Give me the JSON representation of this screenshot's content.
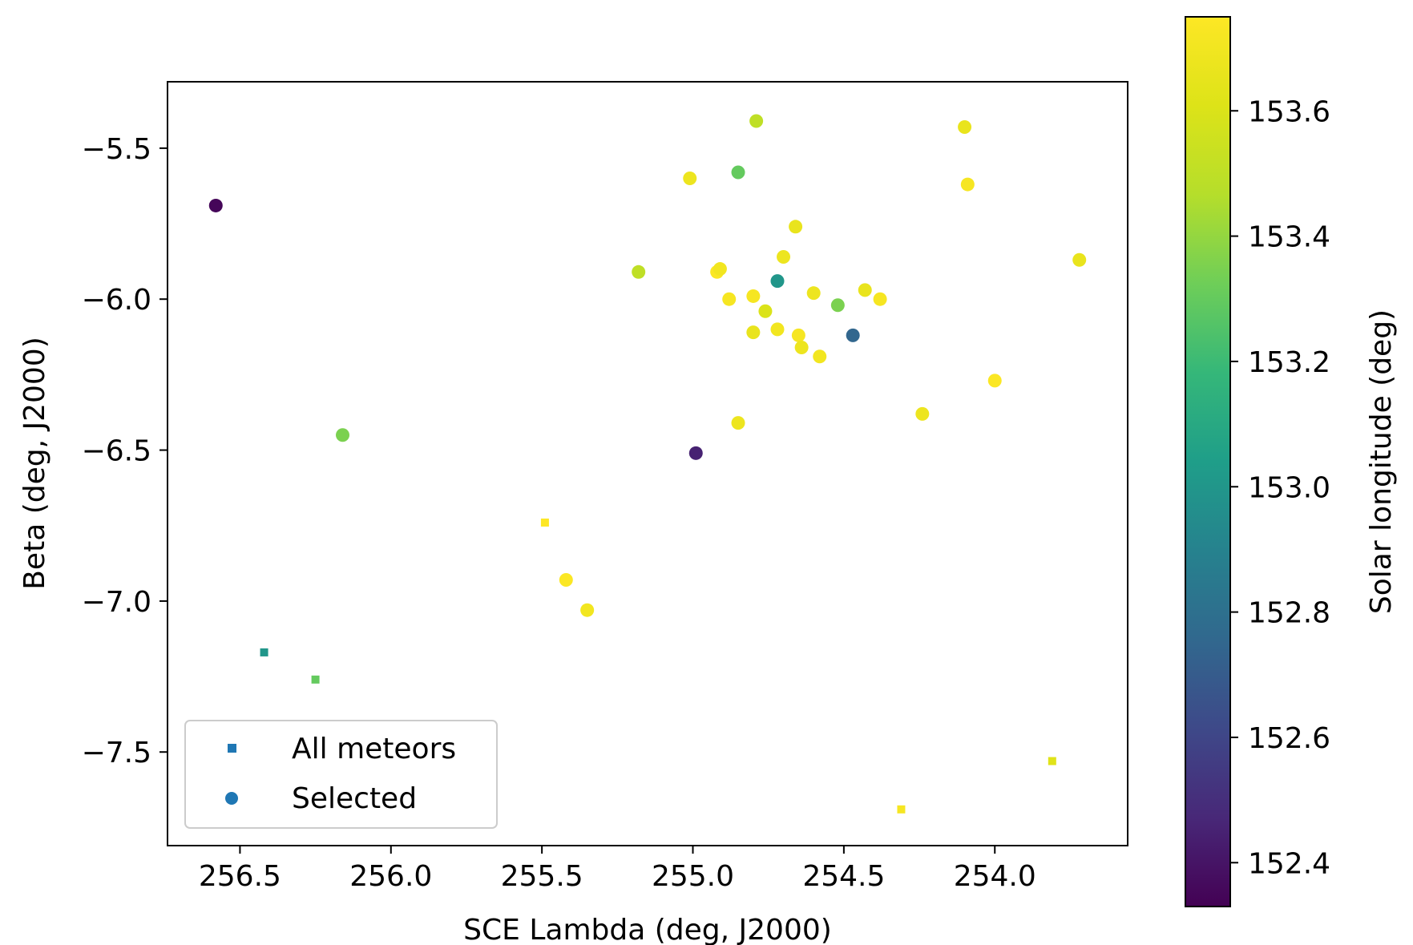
{
  "chart_data": {
    "type": "scatter",
    "title": "",
    "xlabel": "SCE Lambda (deg, J2000)",
    "ylabel": "Beta (deg, J2000)",
    "colorbar_label": "Solar longitude (deg)",
    "xlim": [
      256.74,
      253.56
    ],
    "ylim": [
      -7.81,
      -5.28
    ],
    "x_inverted": true,
    "x_ticks": [
      "256.5",
      "256.0",
      "255.5",
      "255.0",
      "254.5",
      "254.0"
    ],
    "y_ticks": [
      "−5.5",
      "−6.0",
      "−6.5",
      "−7.0",
      "−7.5"
    ],
    "colorbar_range": [
      152.33,
      153.75
    ],
    "colorbar_ticks": [
      "152.4",
      "152.6",
      "152.8",
      "153.0",
      "153.2",
      "153.4",
      "153.6"
    ],
    "colormap": "viridis",
    "grid": false,
    "legend": {
      "placement": "lower left",
      "entries": [
        "All meteors",
        "Selected"
      ]
    },
    "legend_color": "#1f77b4",
    "series": [
      {
        "name": "All meteors",
        "marker": "square",
        "points": [
          {
            "x": 255.49,
            "y": -6.74,
            "c": 153.75
          },
          {
            "x": 256.42,
            "y": -7.17,
            "c": 153.0
          },
          {
            "x": 256.25,
            "y": -7.26,
            "c": 153.3
          },
          {
            "x": 254.31,
            "y": -7.69,
            "c": 153.72
          },
          {
            "x": 253.81,
            "y": -7.53,
            "c": 153.62
          }
        ]
      },
      {
        "name": "Selected",
        "marker": "circle",
        "points": [
          {
            "x": 256.58,
            "y": -5.69,
            "c": 152.35
          },
          {
            "x": 256.16,
            "y": -6.45,
            "c": 153.35
          },
          {
            "x": 255.42,
            "y": -6.93,
            "c": 153.74
          },
          {
            "x": 255.35,
            "y": -7.03,
            "c": 153.7
          },
          {
            "x": 255.18,
            "y": -5.91,
            "c": 153.5
          },
          {
            "x": 255.01,
            "y": -5.6,
            "c": 153.68
          },
          {
            "x": 254.99,
            "y": -6.51,
            "c": 152.45
          },
          {
            "x": 254.92,
            "y": -5.91,
            "c": 153.74
          },
          {
            "x": 254.91,
            "y": -5.9,
            "c": 153.7
          },
          {
            "x": 254.88,
            "y": -6.0,
            "c": 153.72
          },
          {
            "x": 254.85,
            "y": -5.58,
            "c": 153.3
          },
          {
            "x": 254.85,
            "y": -6.41,
            "c": 153.68
          },
          {
            "x": 254.8,
            "y": -5.99,
            "c": 153.72
          },
          {
            "x": 254.8,
            "y": -6.11,
            "c": 153.66
          },
          {
            "x": 254.79,
            "y": -5.41,
            "c": 153.5
          },
          {
            "x": 254.76,
            "y": -6.04,
            "c": 153.6
          },
          {
            "x": 254.72,
            "y": -5.94,
            "c": 153.0
          },
          {
            "x": 254.72,
            "y": -6.1,
            "c": 153.7
          },
          {
            "x": 254.7,
            "y": -5.86,
            "c": 153.68
          },
          {
            "x": 254.66,
            "y": -5.76,
            "c": 153.66
          },
          {
            "x": 254.65,
            "y": -6.12,
            "c": 153.72
          },
          {
            "x": 254.64,
            "y": -6.16,
            "c": 153.68
          },
          {
            "x": 254.6,
            "y": -5.98,
            "c": 153.68
          },
          {
            "x": 254.58,
            "y": -6.19,
            "c": 153.7
          },
          {
            "x": 254.52,
            "y": -6.02,
            "c": 153.35
          },
          {
            "x": 254.47,
            "y": -6.12,
            "c": 152.75
          },
          {
            "x": 254.43,
            "y": -5.97,
            "c": 153.66
          },
          {
            "x": 254.38,
            "y": -6.0,
            "c": 153.72
          },
          {
            "x": 254.24,
            "y": -6.38,
            "c": 153.68
          },
          {
            "x": 254.1,
            "y": -5.43,
            "c": 153.66
          },
          {
            "x": 254.09,
            "y": -5.62,
            "c": 153.72
          },
          {
            "x": 254.0,
            "y": -6.27,
            "c": 153.74
          },
          {
            "x": 253.72,
            "y": -5.87,
            "c": 153.66
          }
        ]
      }
    ]
  }
}
